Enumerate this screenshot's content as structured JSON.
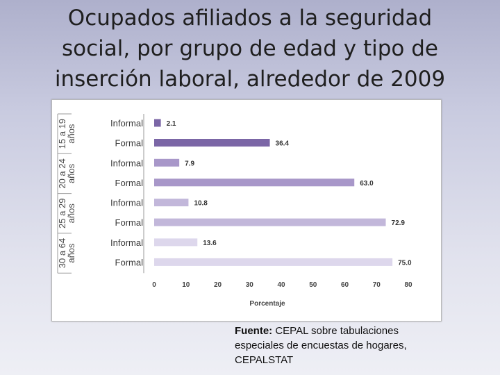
{
  "title_lines": [
    "Ocupados afiliados a la seguridad",
    "social, por grupo de edad y tipo de",
    "inserción laboral, alrededor de 2009"
  ],
  "source": {
    "label": "Fuente:",
    "text": "CEPAL sobre tabulaciones especiales de encuestas de hogares, CEPALSTAT"
  },
  "chart_data": {
    "type": "bar",
    "orientation": "horizontal",
    "xlabel": "Porcentaje",
    "xlim": [
      0,
      80
    ],
    "xticks": [
      0,
      10,
      20,
      30,
      40,
      50,
      60,
      70,
      80
    ],
    "grid": false,
    "groups": [
      {
        "label": "15 a 19 años",
        "color": "#7b66a6",
        "bars": [
          {
            "category": "Informal",
            "value": 2.1
          },
          {
            "category": "Formal",
            "value": 36.4
          }
        ]
      },
      {
        "label": "20 a 24 años",
        "color": "#a897c9",
        "bars": [
          {
            "category": "Informal",
            "value": 7.9
          },
          {
            "category": "Formal",
            "value": 63.0
          }
        ]
      },
      {
        "label": "25 a 29 años",
        "color": "#c2b7da",
        "bars": [
          {
            "category": "Informal",
            "value": 10.8
          },
          {
            "category": "Formal",
            "value": 72.9
          }
        ]
      },
      {
        "label": "30 a 64 años",
        "color": "#ddd7ec",
        "bars": [
          {
            "category": "Informal",
            "value": 13.6
          },
          {
            "category": "Formal",
            "value": 75.0
          }
        ]
      }
    ]
  }
}
